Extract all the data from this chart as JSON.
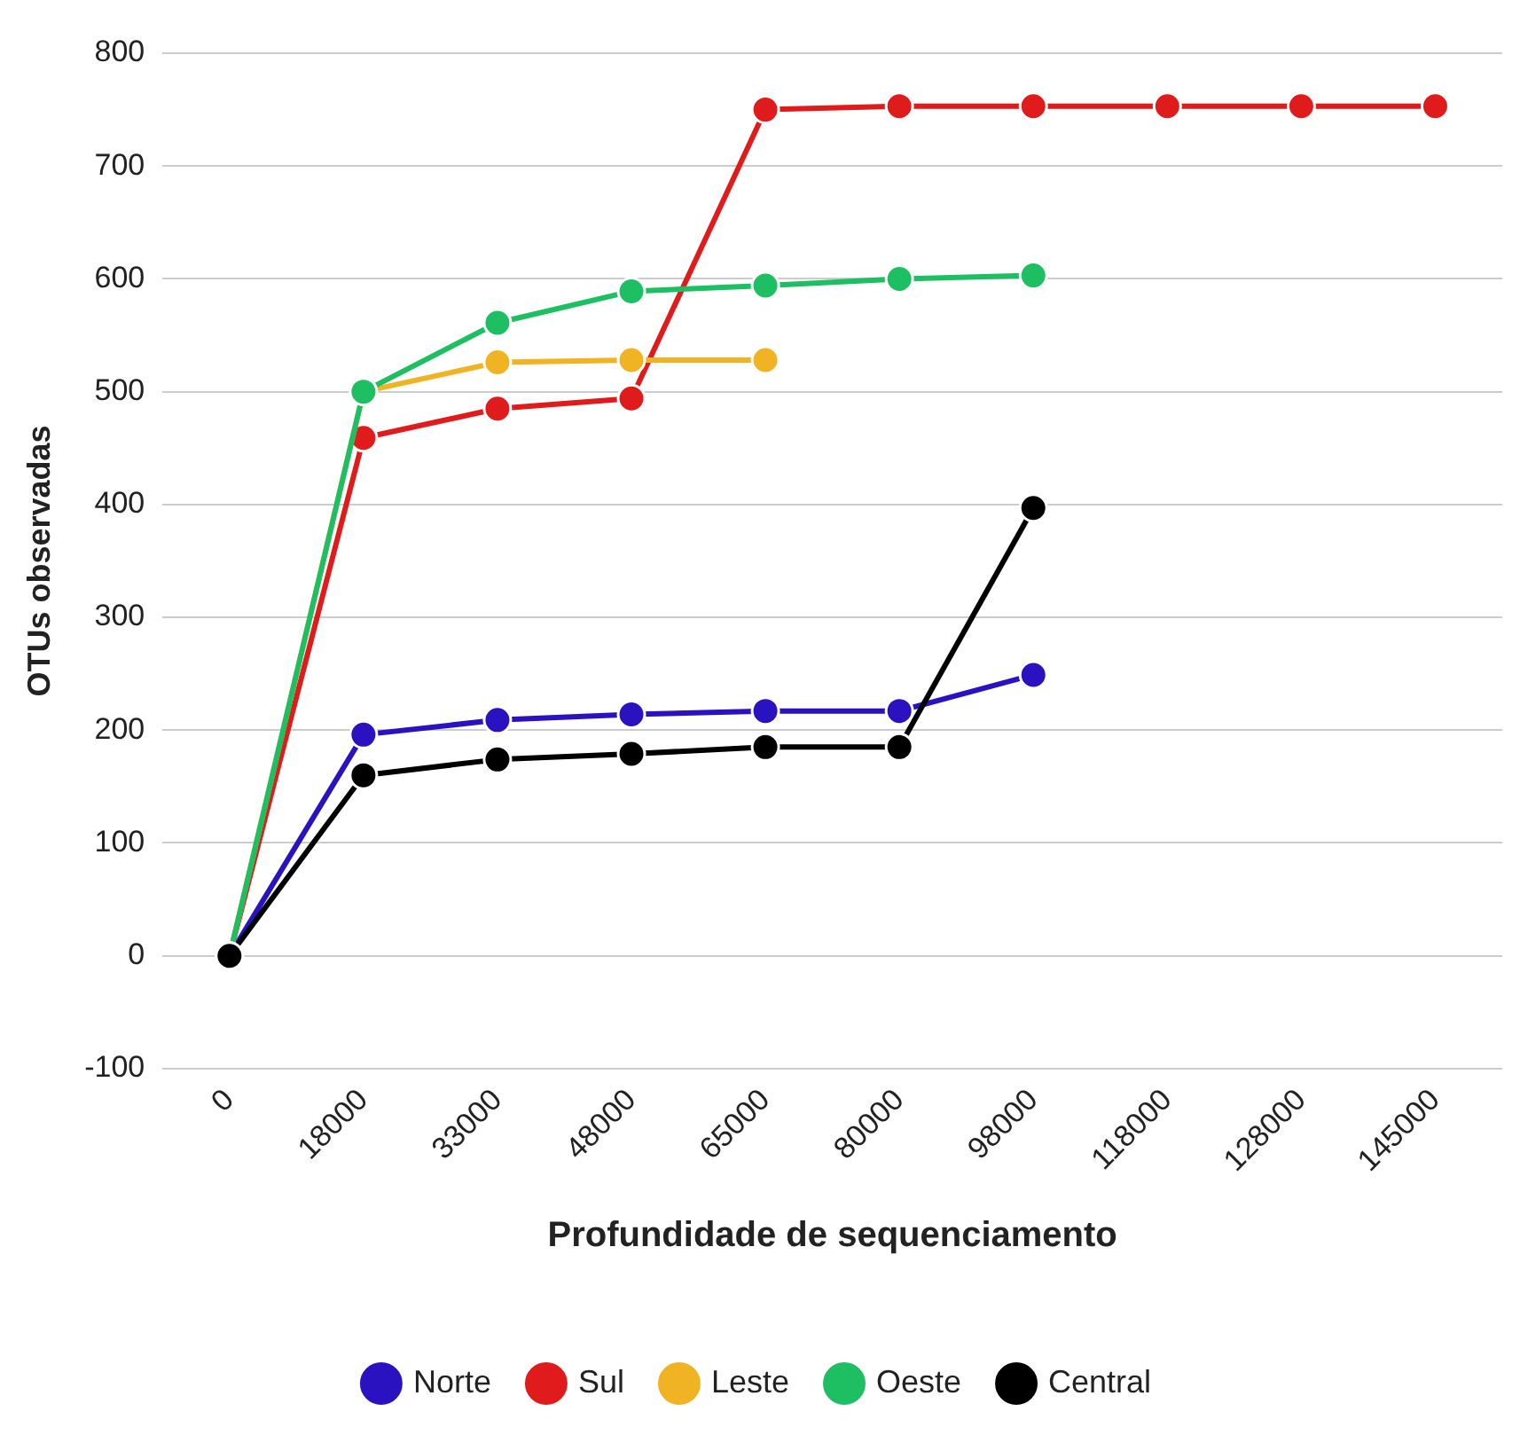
{
  "chart_data": {
    "type": "line",
    "xlabel": "Profundidade de sequenciamento",
    "ylabel": "OTUs observadas",
    "categories": [
      "0",
      "18000",
      "33000",
      "48000",
      "65000",
      "80000",
      "98000",
      "118000",
      "128000",
      "145000"
    ],
    "series": [
      {
        "name": "Norte",
        "color": "#2a12c0",
        "values": [
          0,
          196,
          209,
          214,
          217,
          217,
          249,
          null,
          null,
          null
        ]
      },
      {
        "name": "Sul",
        "color": "#e01b1b",
        "values": [
          0,
          459,
          485,
          494,
          750,
          753,
          753,
          753,
          753,
          753
        ]
      },
      {
        "name": "Leste",
        "color": "#f0b323",
        "values": [
          0,
          500,
          526,
          528,
          528,
          null,
          null,
          null,
          null,
          null
        ]
      },
      {
        "name": "Oeste",
        "color": "#1dbf62",
        "values": [
          0,
          500,
          561,
          589,
          594,
          600,
          603,
          null,
          null,
          null
        ]
      },
      {
        "name": "Central",
        "color": "#000000",
        "values": [
          0,
          160,
          174,
          179,
          185,
          185,
          397,
          null,
          null,
          null
        ]
      }
    ],
    "ylim": [
      -100,
      800
    ],
    "yticks": [
      -100,
      0,
      100,
      200,
      300,
      400,
      500,
      600,
      700,
      800
    ],
    "grid": "y",
    "legend": "bottom",
    "marker": "circle",
    "line_style": "solid"
  }
}
